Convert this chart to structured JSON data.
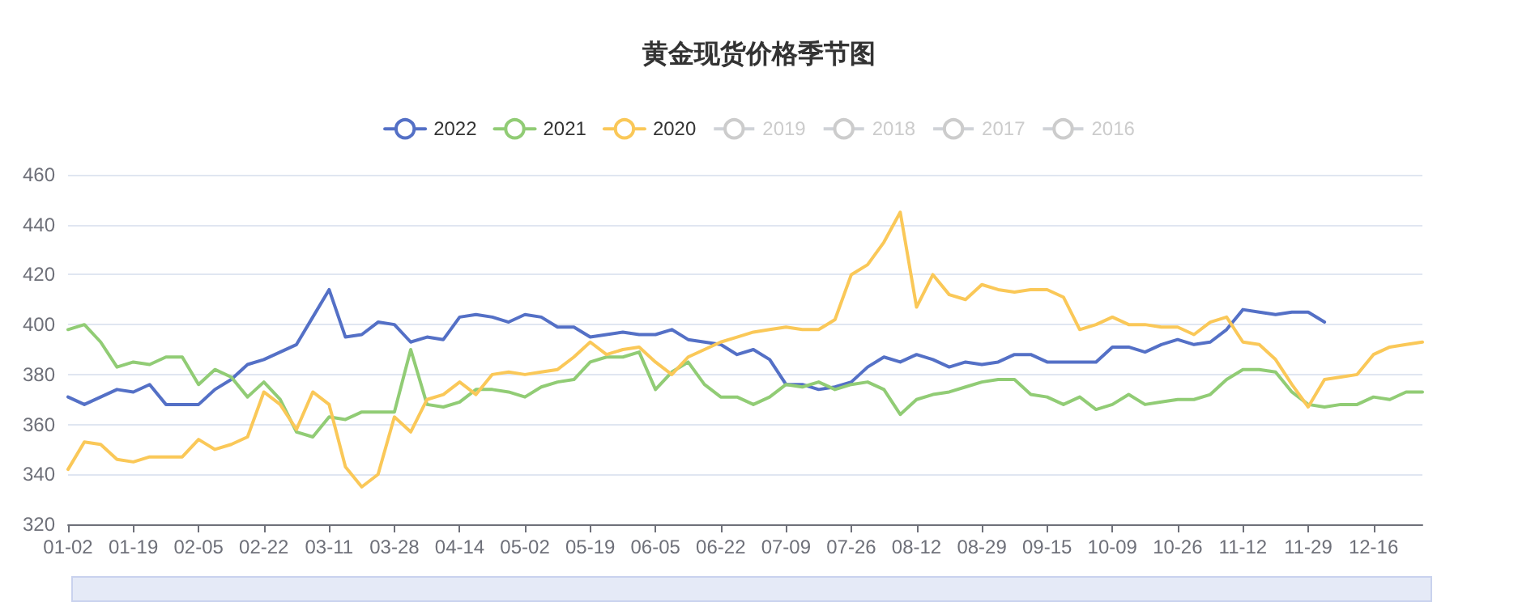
{
  "chart_data": {
    "type": "line",
    "title": "黄金现货价格季节图",
    "categories": [
      "01-02",
      null,
      null,
      null,
      "01-19",
      null,
      null,
      null,
      "02-05",
      null,
      null,
      null,
      "02-22",
      null,
      null,
      null,
      "03-11",
      null,
      null,
      null,
      "03-28",
      null,
      null,
      null,
      "04-14",
      null,
      null,
      null,
      "05-02",
      null,
      null,
      null,
      "05-19",
      null,
      null,
      null,
      "06-05",
      null,
      null,
      null,
      "06-22",
      null,
      null,
      null,
      "07-09",
      null,
      null,
      null,
      "07-26",
      null,
      null,
      null,
      "08-12",
      null,
      null,
      null,
      "08-29",
      null,
      null,
      null,
      "09-15",
      null,
      null,
      null,
      "10-09",
      null,
      null,
      null,
      "10-26",
      null,
      null,
      null,
      "11-12",
      null,
      null,
      null,
      "11-29",
      null,
      null,
      null,
      "12-16",
      null,
      null,
      null
    ],
    "series": [
      {
        "name": "2022",
        "color": "#5470c6",
        "values": [
          371,
          368,
          371,
          374,
          373,
          376,
          368,
          368,
          368,
          374,
          378,
          384,
          386,
          389,
          392,
          403,
          414,
          395,
          396,
          401,
          400,
          393,
          395,
          394,
          403,
          404,
          403,
          401,
          404,
          403,
          399,
          399,
          395,
          396,
          397,
          396,
          396,
          398,
          394,
          393,
          392,
          388,
          390,
          386,
          376,
          376,
          374,
          375,
          377,
          383,
          387,
          385,
          388,
          386,
          383,
          385,
          384,
          385,
          388,
          388,
          385,
          385,
          385,
          385,
          391,
          391,
          389,
          392,
          394,
          392,
          393,
          398,
          406,
          405,
          404,
          405,
          405,
          401,
          null,
          null,
          null,
          null,
          null,
          null
        ]
      },
      {
        "name": "2021",
        "color": "#91cc75",
        "values": [
          398,
          400,
          393,
          383,
          385,
          384,
          387,
          387,
          376,
          382,
          379,
          371,
          377,
          370,
          357,
          355,
          363,
          362,
          365,
          365,
          365,
          390,
          368,
          367,
          369,
          374,
          374,
          373,
          371,
          375,
          377,
          378,
          385,
          387,
          387,
          389,
          374,
          381,
          385,
          376,
          371,
          371,
          368,
          371,
          376,
          375,
          377,
          374,
          376,
          377,
          374,
          364,
          370,
          372,
          373,
          375,
          377,
          378,
          378,
          372,
          371,
          368,
          371,
          366,
          368,
          372,
          368,
          369,
          370,
          370,
          372,
          378,
          382,
          382,
          381,
          373,
          368,
          367,
          368,
          368,
          371,
          370,
          373,
          373
        ]
      },
      {
        "name": "2020",
        "color": "#fac858",
        "values": [
          342,
          353,
          352,
          346,
          345,
          347,
          347,
          347,
          354,
          350,
          352,
          355,
          373,
          368,
          358,
          373,
          368,
          343,
          335,
          340,
          363,
          357,
          370,
          372,
          377,
          372,
          380,
          381,
          380,
          381,
          382,
          387,
          393,
          388,
          390,
          391,
          385,
          380,
          387,
          390,
          393,
          395,
          397,
          398,
          399,
          398,
          398,
          402,
          420,
          424,
          433,
          445,
          407,
          420,
          412,
          410,
          416,
          414,
          413,
          414,
          414,
          411,
          398,
          400,
          403,
          400,
          400,
          399,
          399,
          396,
          401,
          403,
          393,
          392,
          386,
          376,
          367,
          378,
          379,
          380,
          388,
          391,
          392,
          393
        ]
      },
      {
        "name": "2019",
        "color": "#cccccc",
        "values": [
          null,
          null,
          null,
          null,
          null,
          null,
          null,
          null,
          null,
          null,
          null,
          null,
          null,
          null,
          null,
          null,
          null,
          null,
          null,
          null,
          null,
          null,
          null,
          null,
          null,
          null,
          null,
          null,
          null,
          null,
          null,
          null,
          null,
          null,
          null,
          null,
          null,
          null,
          null,
          null,
          null,
          null,
          null,
          null,
          null,
          null,
          null,
          null,
          null,
          null,
          null,
          null,
          null,
          null,
          null,
          null,
          null,
          null,
          null,
          null,
          null,
          null,
          null,
          null,
          null,
          null,
          null,
          null,
          null,
          null,
          null,
          null,
          null,
          null,
          null,
          null,
          null,
          null,
          null,
          null,
          null,
          null,
          null,
          null
        ]
      },
      {
        "name": "2018",
        "color": "#cccccc",
        "values": [
          null,
          null,
          null,
          null,
          null,
          null,
          null,
          null,
          null,
          null,
          null,
          null,
          null,
          null,
          null,
          null,
          null,
          null,
          null,
          null,
          null,
          null,
          null,
          null,
          null,
          null,
          null,
          null,
          null,
          null,
          null,
          null,
          null,
          null,
          null,
          null,
          null,
          null,
          null,
          null,
          null,
          null,
          null,
          null,
          null,
          null,
          null,
          null,
          null,
          null,
          null,
          null,
          null,
          null,
          null,
          null,
          null,
          null,
          null,
          null,
          null,
          null,
          null,
          null,
          null,
          null,
          null,
          null,
          null,
          null,
          null,
          null,
          null,
          null,
          null,
          null,
          null,
          null,
          null,
          null,
          null,
          null,
          null,
          null
        ]
      },
      {
        "name": "2017",
        "color": "#cccccc",
        "values": [
          null,
          null,
          null,
          null,
          null,
          null,
          null,
          null,
          null,
          null,
          null,
          null,
          null,
          null,
          null,
          null,
          null,
          null,
          null,
          null,
          null,
          null,
          null,
          null,
          null,
          null,
          null,
          null,
          null,
          null,
          null,
          null,
          null,
          null,
          null,
          null,
          null,
          null,
          null,
          null,
          null,
          null,
          null,
          null,
          null,
          null,
          null,
          null,
          null,
          null,
          null,
          null,
          null,
          null,
          null,
          null,
          null,
          null,
          null,
          null,
          null,
          null,
          null,
          null,
          null,
          null,
          null,
          null,
          null,
          null,
          null,
          null,
          null,
          null,
          null,
          null,
          null,
          null,
          null,
          null,
          null,
          null,
          null,
          null
        ]
      },
      {
        "name": "2016",
        "color": "#cccccc",
        "values": [
          null,
          null,
          null,
          null,
          null,
          null,
          null,
          null,
          null,
          null,
          null,
          null,
          null,
          null,
          null,
          null,
          null,
          null,
          null,
          null,
          null,
          null,
          null,
          null,
          null,
          null,
          null,
          null,
          null,
          null,
          null,
          null,
          null,
          null,
          null,
          null,
          null,
          null,
          null,
          null,
          null,
          null,
          null,
          null,
          null,
          null,
          null,
          null,
          null,
          null,
          null,
          null,
          null,
          null,
          null,
          null,
          null,
          null,
          null,
          null,
          null,
          null,
          null,
          null,
          null,
          null,
          null,
          null,
          null,
          null,
          null,
          null,
          null,
          null,
          null,
          null,
          null,
          null,
          null,
          null,
          null,
          null,
          null,
          null
        ]
      }
    ],
    "ylim": [
      320,
      460
    ],
    "yticks": [
      320,
      340,
      360,
      380,
      400,
      420,
      440,
      460
    ],
    "grid": "y",
    "legend": "top",
    "marker": "none",
    "line_style": "solid"
  }
}
